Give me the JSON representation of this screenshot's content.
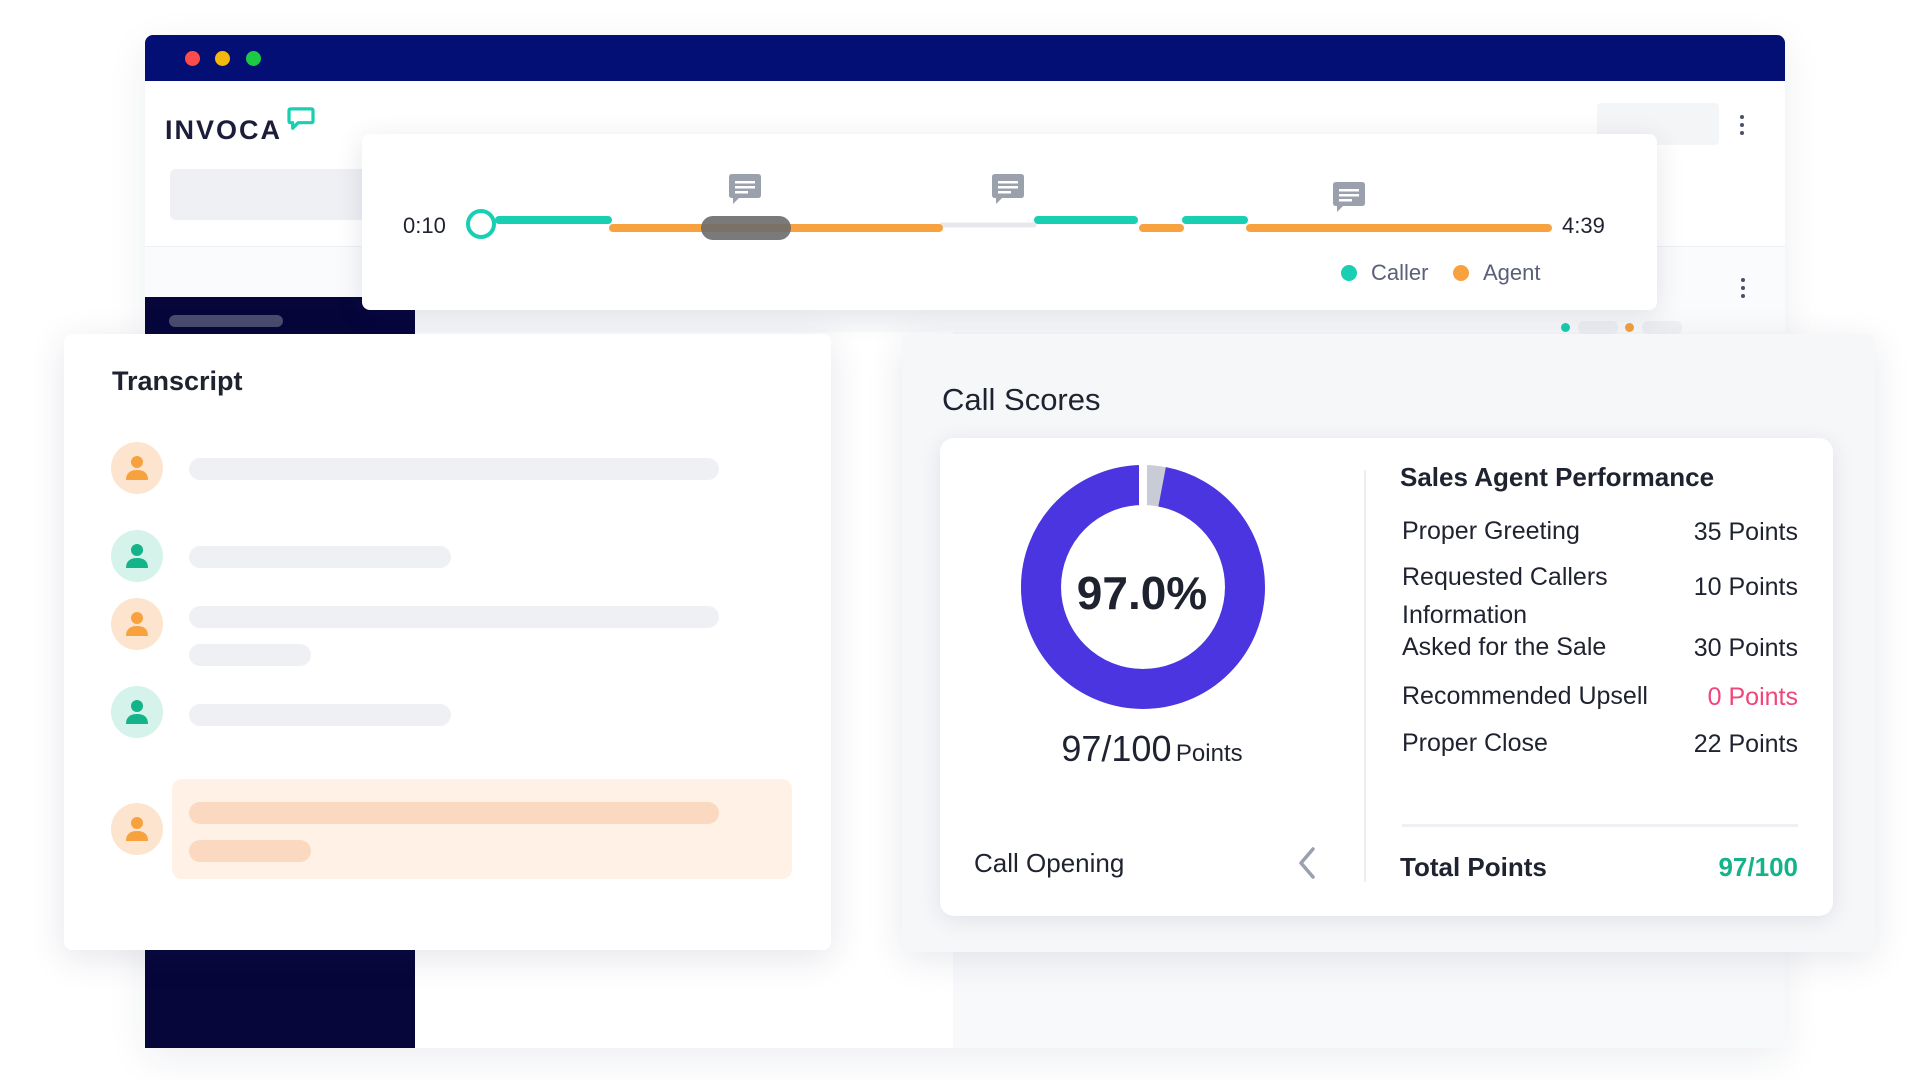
{
  "app": {
    "brand": "INVOCA"
  },
  "timeline": {
    "start_time": "0:10",
    "end_time": "4:39",
    "legend": [
      {
        "label": "Caller",
        "color": "#18cfb1"
      },
      {
        "label": "Agent",
        "color": "#f7a23e"
      }
    ]
  },
  "transcript": {
    "title": "Transcript",
    "messages": [
      {
        "speaker": "agent"
      },
      {
        "speaker": "caller"
      },
      {
        "speaker": "agent"
      },
      {
        "speaker": "caller"
      },
      {
        "speaker": "agent",
        "highlighted": true
      }
    ]
  },
  "scores": {
    "title": "Call Scores",
    "percent": "97.0%",
    "score_fraction": 0.97,
    "points_value": "97/100",
    "points_unit": "Points",
    "category": "Call Opening",
    "performance_title": "Sales Agent Performance",
    "rows": [
      {
        "label": "Proper Greeting",
        "value": "35 Points"
      },
      {
        "label": "Requested Callers Information",
        "value": "10 Points"
      },
      {
        "label": "Asked for the Sale",
        "value": "30 Points"
      },
      {
        "label": "Recommended Upsell",
        "value": "0 Points"
      },
      {
        "label": "Proper Close",
        "value": "22 Points"
      }
    ],
    "total_label": "Total Points",
    "total_value": "97/100"
  },
  "colors": {
    "accent": "#4a35e0",
    "caller": "#18cfb1",
    "agent": "#f7a23e",
    "window_titlebar": "#030f74",
    "zero_value": "#f0457a",
    "total_value": "#14b38a"
  },
  "icons": [
    "logo-chat-bubble-icon",
    "comment-icon",
    "person-icon",
    "chevron-left-icon",
    "kebab-menu-icon"
  ]
}
